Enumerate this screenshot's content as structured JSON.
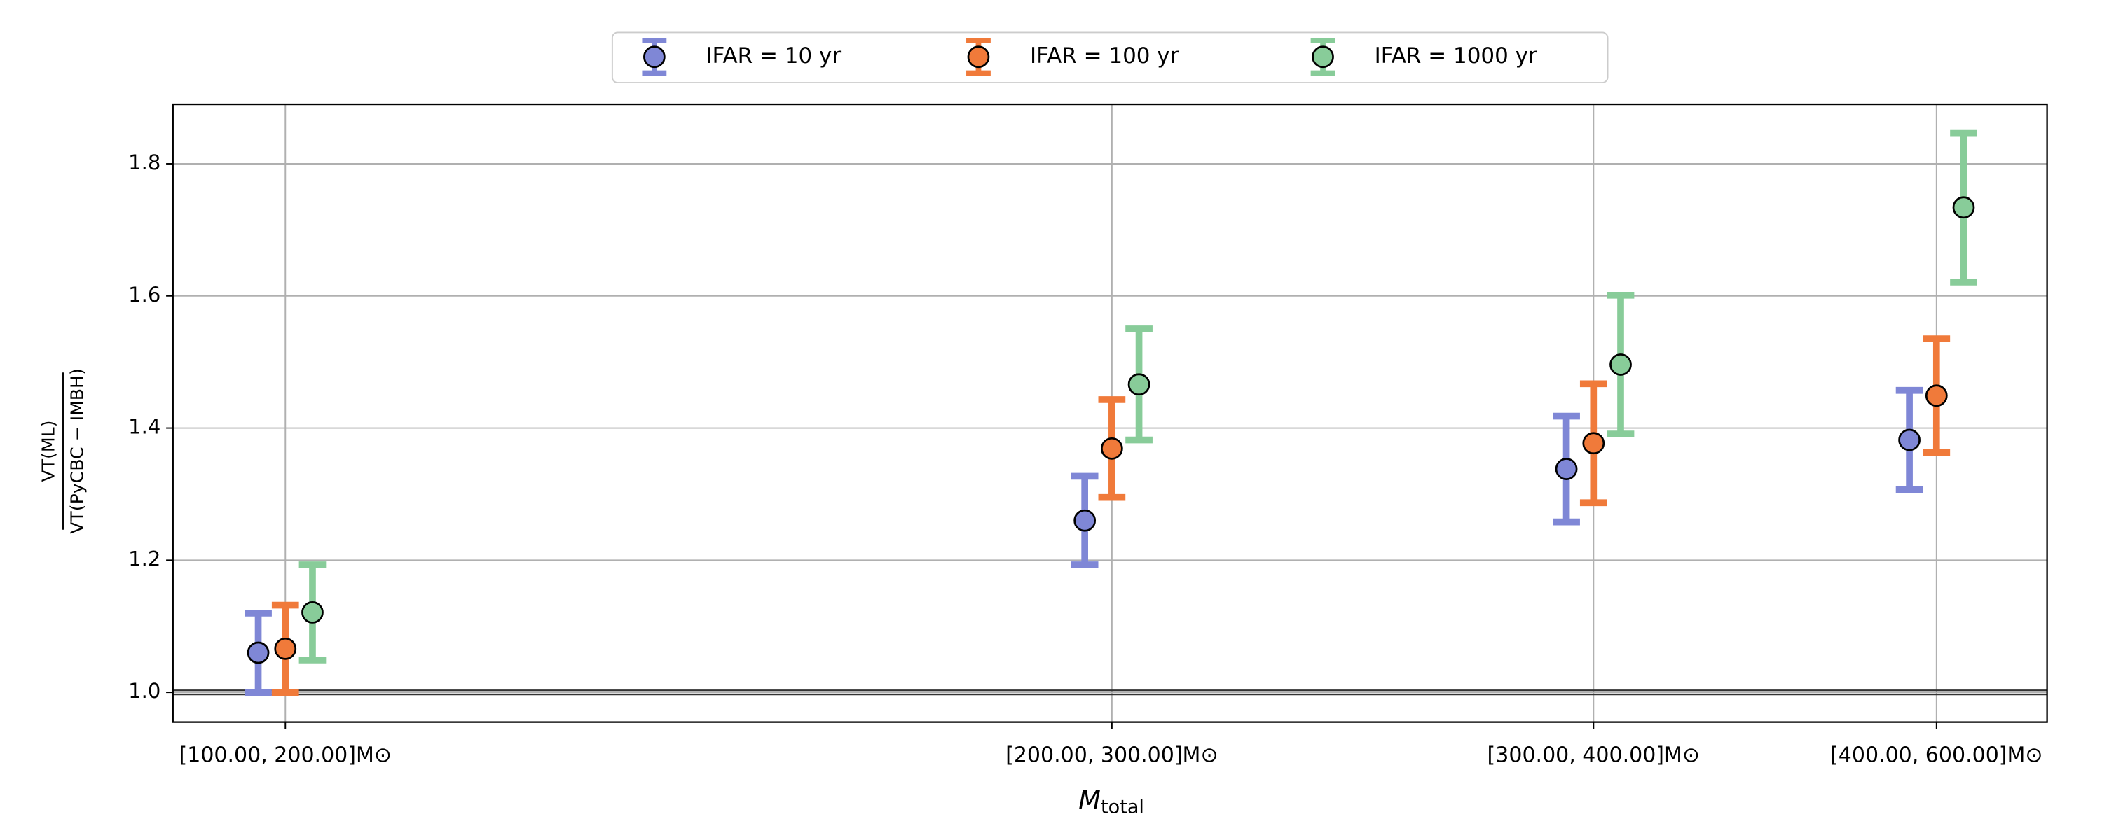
{
  "chart_data": {
    "type": "errorbar",
    "categories": [
      "[100.00, 200.00]M⊙",
      "[200.00, 300.00]M⊙",
      "[300.00, 400.00]M⊙",
      "[400.00, 600.00]M⊙"
    ],
    "series": [
      {
        "name": "IFAR = 10 yr",
        "color": "#7f87d6",
        "values": [
          1.06,
          1.26,
          1.338,
          1.382
        ],
        "errors": [
          0.06,
          0.067,
          0.08,
          0.075
        ]
      },
      {
        "name": "IFAR = 100 yr",
        "color": "#f07a3a",
        "values": [
          1.066,
          1.369,
          1.377,
          1.449
        ],
        "errors": [
          0.066,
          0.074,
          0.09,
          0.086
        ]
      },
      {
        "name": "IFAR = 1000 yr",
        "color": "#88cc99",
        "values": [
          1.121,
          1.466,
          1.496,
          1.734
        ],
        "errors": [
          0.072,
          0.084,
          0.105,
          0.113
        ]
      }
    ],
    "ylim": [
      0.955,
      1.89
    ],
    "yticks": [
      {
        "value": 1.0,
        "label": "1.0"
      },
      1.2,
      1.4,
      1.6,
      1.8
    ],
    "reference_line": 1,
    "x_label": {
      "symbol": "M",
      "subscript": "total"
    },
    "y_label": {
      "numerator": "VT(ML)",
      "denominator": "VT(PyCBC − IMBH)"
    },
    "grid": true,
    "legend": "upper center"
  }
}
